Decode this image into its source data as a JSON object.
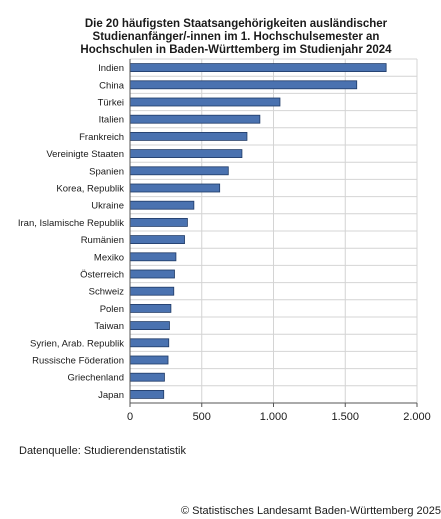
{
  "chart_data": {
    "type": "bar",
    "orientation": "horizontal",
    "title_lines": [
      "Die 20 häufigsten Staatsangehörigkeiten ausländischer",
      "Studienanfänger/-innen im 1. Hochschulsemester an",
      "Hochschulen in Baden-Württemberg im Studienjahr 2024"
    ],
    "categories": [
      "Indien",
      "China",
      "Türkei",
      "Italien",
      "Frankreich",
      "Vereinigte Staaten",
      "Spanien",
      "Korea, Republik",
      "Ukraine",
      "Iran, Islamische Republik",
      "Rumänien",
      "Mexiko",
      "Österreich",
      "Schweiz",
      "Polen",
      "Taiwan",
      "Syrien, Arab. Republik",
      "Russische Föderation",
      "Griechenland",
      "Japan"
    ],
    "values": [
      1785,
      1580,
      1045,
      905,
      815,
      780,
      685,
      625,
      445,
      400,
      380,
      320,
      310,
      305,
      285,
      275,
      270,
      265,
      240,
      235
    ],
    "xlim": [
      0,
      2000
    ],
    "xticks": [
      0,
      500,
      1000,
      1500,
      2000
    ],
    "xtick_labels": [
      "0",
      "500",
      "1.000",
      "1.500",
      "2.000"
    ],
    "grid": true,
    "bar_color": "#4a72b0",
    "bar_edge_color": "#1f3a66"
  },
  "source_note": "Datenquelle: Studierendenstatistik",
  "copyright": "© Statistisches Landesamt Baden-Württemberg 2025"
}
